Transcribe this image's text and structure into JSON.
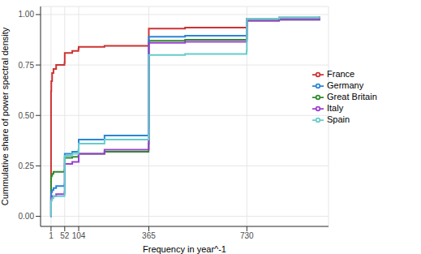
{
  "chart_data": {
    "type": "line",
    "x_label": "Frequency in year^-1",
    "y_label": "Cummulative share of power spectral density",
    "x": [
      0,
      1,
      2,
      5,
      10,
      20,
      51,
      52,
      80,
      103,
      104,
      200,
      364,
      365,
      500,
      729,
      730,
      850,
      1000
    ],
    "series": [
      {
        "name": "France",
        "color": "#cc3333",
        "values": [
          0,
          0.62,
          0.67,
          0.71,
          0.73,
          0.75,
          0.76,
          0.81,
          0.82,
          0.83,
          0.84,
          0.845,
          0.855,
          0.93,
          0.935,
          0.94,
          0.98,
          0.985,
          0.99
        ]
      },
      {
        "name": "Great Britain",
        "color": "#2e8b2e",
        "values": [
          0,
          0.19,
          0.2,
          0.21,
          0.22,
          0.22,
          0.23,
          0.29,
          0.295,
          0.3,
          0.31,
          0.32,
          0.33,
          0.87,
          0.875,
          0.88,
          0.97,
          0.975,
          0.98
        ]
      },
      {
        "name": "Germany",
        "color": "#2a85d8",
        "values": [
          0,
          0.1,
          0.12,
          0.13,
          0.14,
          0.15,
          0.16,
          0.31,
          0.32,
          0.33,
          0.38,
          0.4,
          0.44,
          0.89,
          0.895,
          0.9,
          0.98,
          0.985,
          0.99
        ]
      },
      {
        "name": "Italy",
        "color": "#9b3fd1",
        "values": [
          0,
          0.08,
          0.09,
          0.1,
          0.1,
          0.11,
          0.12,
          0.26,
          0.27,
          0.27,
          0.31,
          0.33,
          0.36,
          0.86,
          0.865,
          0.87,
          0.97,
          0.975,
          0.98
        ]
      },
      {
        "name": "Spain",
        "color": "#66cccc",
        "values": [
          0,
          0.07,
          0.08,
          0.09,
          0.1,
          0.1,
          0.11,
          0.3,
          0.31,
          0.32,
          0.36,
          0.38,
          0.4,
          0.8,
          0.805,
          0.82,
          0.98,
          0.985,
          0.99
        ]
      }
    ],
    "xlim": [
      -38,
      1034
    ],
    "xticks": [
      1,
      52,
      104,
      365,
      730
    ],
    "ylim": [
      -0.05,
      1.04
    ],
    "yticks": [
      {
        "value": 0,
        "label": "0.00"
      },
      {
        "value": 0.25,
        "label": "0.25"
      },
      {
        "value": 0.5,
        "label": "0.50"
      },
      {
        "value": 0.75,
        "label": "0.75"
      },
      {
        "value": 1,
        "label": "1.00"
      }
    ],
    "grid": true,
    "legend": "right",
    "line_style": "step"
  }
}
